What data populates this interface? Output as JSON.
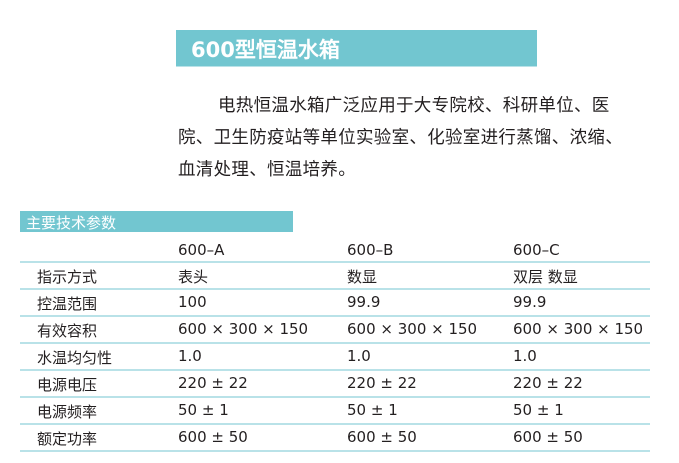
{
  "title": "600型恒温水箱",
  "description": "电热恒温水箱广泛应用于大专院校、科研单位、医院、卫生防疫站等单位实验室、化验室进行蒸馏、浓缩、血清处理、恒温培养。",
  "section_title": "主要技术参数",
  "table": {
    "headers": [
      "",
      "600–A",
      "600–B",
      "600–C"
    ],
    "rows": [
      [
        "指示方式",
        "表头",
        "数显",
        "双层 数显"
      ],
      [
        "控温范围",
        "100",
        "99.9",
        "99.9"
      ],
      [
        "有效容积",
        "600 × 300 × 150",
        "600 × 300 × 150",
        "600 × 300 × 150"
      ],
      [
        "水温均匀性",
        "1.0",
        "1.0",
        "1.0"
      ],
      [
        "电源电压",
        "220 ± 22",
        "220 ± 22",
        "220 ± 22"
      ],
      [
        "电源频率",
        "50 ± 1",
        "50 ± 1",
        "50 ± 1"
      ],
      [
        "额定功率",
        "600 ± 50",
        "600 ± 50",
        "600 ± 50"
      ]
    ]
  },
  "colors": {
    "accent": "#72c6d0",
    "rule": "#b9e2e8"
  }
}
